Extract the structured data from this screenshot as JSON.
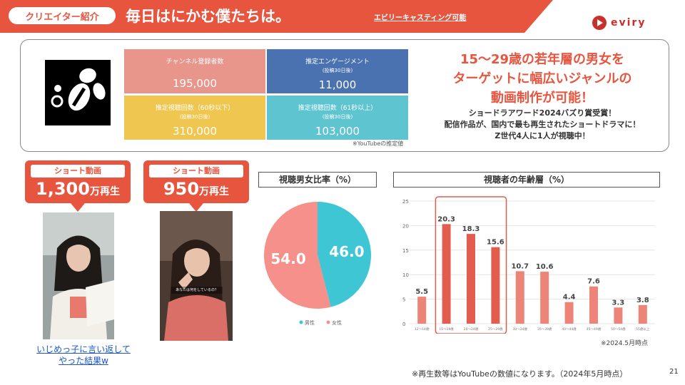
{
  "header": {
    "tag": "クリエイター紹介",
    "title": "毎日はにかむ僕たちは。",
    "casting_link": "エビリーキャスティング可能",
    "logo_text": "eviry",
    "accent": "#e8553f"
  },
  "stats": [
    {
      "label": "チャンネル登録者数",
      "sub": "",
      "value": "195,000",
      "color": "#e8958b"
    },
    {
      "label": "推定エンゲージメント",
      "sub": "(投稿30日後)",
      "value": "11,000",
      "color": "#4a72b0"
    },
    {
      "label": "推定視聴回数（60秒以下）",
      "sub": "(投稿30日後)",
      "value": "310,000",
      "color": "#efc64f"
    },
    {
      "label": "推定視聴回数（61秒以上）",
      "sub": "(投稿30日後)",
      "value": "103,000",
      "color": "#5ec4d0"
    }
  ],
  "stats_note": "※YouTubeの推定値",
  "catch": {
    "lines": [
      "15〜29歳の若年層の男女を",
      "ターゲットに幅広いジャンルの",
      "動画制作が可能！"
    ],
    "desc": [
      "ショードラアワード2024バズり賞受賞！",
      "配信作品が、国内で最も再生されたショートドラマに！",
      "Z世代4人に1人が視聴中！"
    ]
  },
  "videos": [
    {
      "badge": "ショート動画",
      "views_num": "1,300",
      "views_unit": "万再生",
      "link": [
        "いじめっ子に言い返して",
        "やった結果w"
      ]
    },
    {
      "badge": "ショート動画",
      "views_num": "950",
      "views_unit": "万再生",
      "caption": "あなたは何をしているの？"
    }
  ],
  "gender": {
    "title": "視聴男女比率（%）",
    "legend": [
      "男性",
      "女性"
    ]
  },
  "age": {
    "title": "視聴者の年齢層（%）",
    "note": "※2024.5月時点"
  },
  "chart_data": [
    {
      "type": "pie",
      "title": "視聴男女比率（%）",
      "labels": [
        "男性",
        "女性"
      ],
      "values": [
        46.0,
        54.0
      ],
      "colors": [
        "#3fc6d4",
        "#f5918a"
      ],
      "legend": "bottom"
    },
    {
      "type": "bar",
      "title": "視聴者の年齢層（%）",
      "categories": [
        "12〜14歳",
        "15〜19歳",
        "20〜24歳",
        "25〜29歳",
        "30〜34歳",
        "35〜39歳",
        "40〜44歳",
        "45〜49歳",
        "50〜54歳",
        "55歳以上"
      ],
      "values": [
        5.5,
        20.3,
        18.3,
        15.6,
        10.7,
        10.6,
        4.4,
        7.6,
        3.3,
        3.8
      ],
      "ylim": [
        0,
        25
      ],
      "yticks": [
        0,
        5,
        10,
        15,
        20,
        25
      ],
      "highlight": [
        1,
        2,
        3
      ],
      "grid": true,
      "colors": {
        "normal": "#ec8577",
        "highlight": "#e35d4e"
      }
    }
  ],
  "footer": {
    "note": "※再生数等はYouTubeの数値になります。（2024年5月時点）",
    "page": "21"
  }
}
